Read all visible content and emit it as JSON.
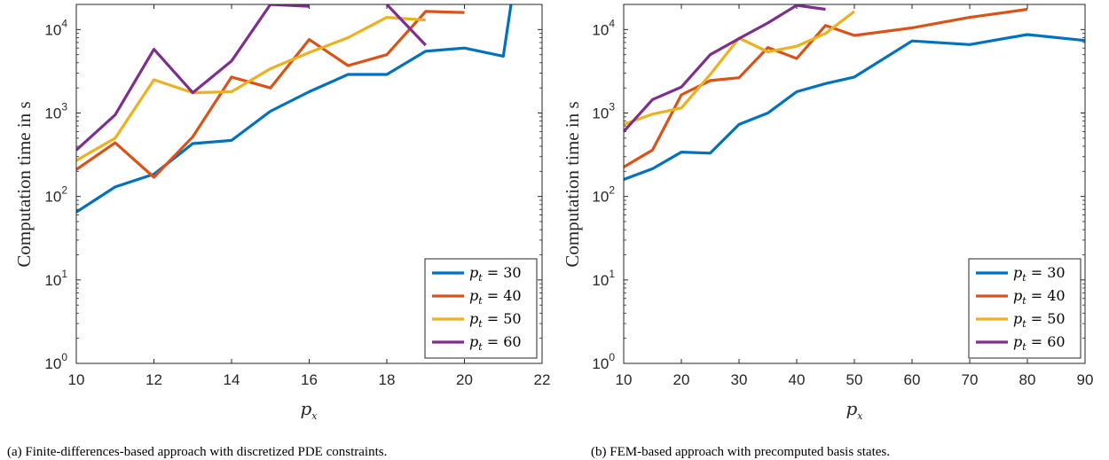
{
  "colors": {
    "pt30": "#0072BD",
    "pt40": "#D95319",
    "pt50": "#EDB120",
    "pt60": "#7E2F8E"
  },
  "chart_data": [
    {
      "type": "line",
      "yscale": "log",
      "ylabel": "Computation time in s",
      "xlabel": "p_x",
      "xlim": [
        10,
        22
      ],
      "ylim": [
        1,
        20000
      ],
      "xticks": [
        "10",
        "12",
        "14",
        "16",
        "18",
        "20",
        "22"
      ],
      "yticks": [
        "10^0",
        "10^1",
        "10^2",
        "10^3",
        "10^4"
      ],
      "legend_position": "bottom-right",
      "caption": "(a) Finite-differences-based approach with discretized PDE constraints.",
      "series": [
        {
          "name": "p_t = 30",
          "color": "#0072BD",
          "points": [
            [
              10,
              65
            ],
            [
              11,
              130
            ],
            [
              12,
              185
            ],
            [
              13,
              430
            ],
            [
              14,
              470
            ],
            [
              15,
              1050
            ],
            [
              16,
              1800
            ],
            [
              17,
              2900
            ],
            [
              18,
              2900
            ],
            [
              19,
              5500
            ],
            [
              20,
              6000
            ],
            [
              21,
              4800
            ],
            [
              21.2,
              20000
            ]
          ]
        },
        {
          "name": "p_t = 40",
          "color": "#D95319",
          "points": [
            [
              10,
              210
            ],
            [
              11,
              440
            ],
            [
              12,
              170
            ],
            [
              13,
              520
            ],
            [
              14,
              2700
            ],
            [
              15,
              2000
            ],
            [
              16,
              7600
            ],
            [
              17,
              3700
            ],
            [
              18,
              5000
            ],
            [
              19,
              16500
            ],
            [
              20,
              16000
            ]
          ]
        },
        {
          "name": "p_t = 50",
          "color": "#EDB120",
          "points": [
            [
              10,
              270
            ],
            [
              11,
              500
            ],
            [
              12,
              2500
            ],
            [
              13,
              1750
            ],
            [
              14,
              1800
            ],
            [
              15,
              3400
            ],
            [
              16,
              5300
            ],
            [
              17,
              8000
            ],
            [
              18,
              14000
            ],
            [
              19,
              13000
            ]
          ]
        },
        {
          "name": "p_t = 60",
          "color": "#7E2F8E",
          "points": [
            [
              10,
              360
            ],
            [
              11,
              950
            ],
            [
              12,
              5800
            ],
            [
              13,
              1750
            ],
            [
              14,
              4200
            ],
            [
              15,
              20000
            ],
            [
              16,
              19000
            ],
            null,
            [
              18,
              20000
            ],
            [
              19,
              6500
            ]
          ]
        }
      ]
    },
    {
      "type": "line",
      "yscale": "log",
      "ylabel": "Computation time in s",
      "xlabel": "p_x",
      "xlim": [
        10,
        90
      ],
      "ylim": [
        1,
        20000
      ],
      "xticks": [
        "10",
        "20",
        "30",
        "40",
        "50",
        "60",
        "70",
        "80",
        "90"
      ],
      "yticks": [
        "10^0",
        "10^1",
        "10^2",
        "10^3",
        "10^4"
      ],
      "legend_position": "bottom-right",
      "caption": "(b) FEM-based approach with precomputed basis states.",
      "series": [
        {
          "name": "p_t = 30",
          "color": "#0072BD",
          "points": [
            [
              10,
              160
            ],
            [
              15,
              215
            ],
            [
              20,
              340
            ],
            [
              25,
              330
            ],
            [
              30,
              730
            ],
            [
              35,
              1000
            ],
            [
              40,
              1800
            ],
            [
              45,
              2250
            ],
            [
              50,
              2700
            ],
            [
              60,
              7300
            ],
            [
              70,
              6600
            ],
            [
              80,
              8700
            ],
            [
              90,
              7400
            ]
          ]
        },
        {
          "name": "p_t = 40",
          "color": "#D95319",
          "points": [
            [
              10,
              225
            ],
            [
              15,
              360
            ],
            [
              20,
              1650
            ],
            [
              25,
              2450
            ],
            [
              30,
              2650
            ],
            [
              35,
              6100
            ],
            [
              40,
              4500
            ],
            [
              45,
              11200
            ],
            [
              50,
              8500
            ],
            [
              60,
              10500
            ],
            [
              70,
              14000
            ],
            [
              80,
              17500
            ]
          ]
        },
        {
          "name": "p_t = 50",
          "color": "#EDB120",
          "points": [
            [
              10,
              730
            ],
            [
              15,
              970
            ],
            [
              20,
              1150
            ],
            [
              25,
              2900
            ],
            [
              30,
              7900
            ],
            [
              35,
              5400
            ],
            [
              40,
              6300
            ],
            [
              45,
              9000
            ],
            [
              50,
              16500
            ]
          ]
        },
        {
          "name": "p_t = 60",
          "color": "#7E2F8E",
          "points": [
            [
              10,
              600
            ],
            [
              15,
              1450
            ],
            [
              20,
              2050
            ],
            [
              25,
              5000
            ],
            [
              30,
              7800
            ],
            [
              35,
              12000
            ],
            [
              40,
              19500
            ],
            [
              45,
              17500
            ]
          ]
        }
      ]
    }
  ]
}
